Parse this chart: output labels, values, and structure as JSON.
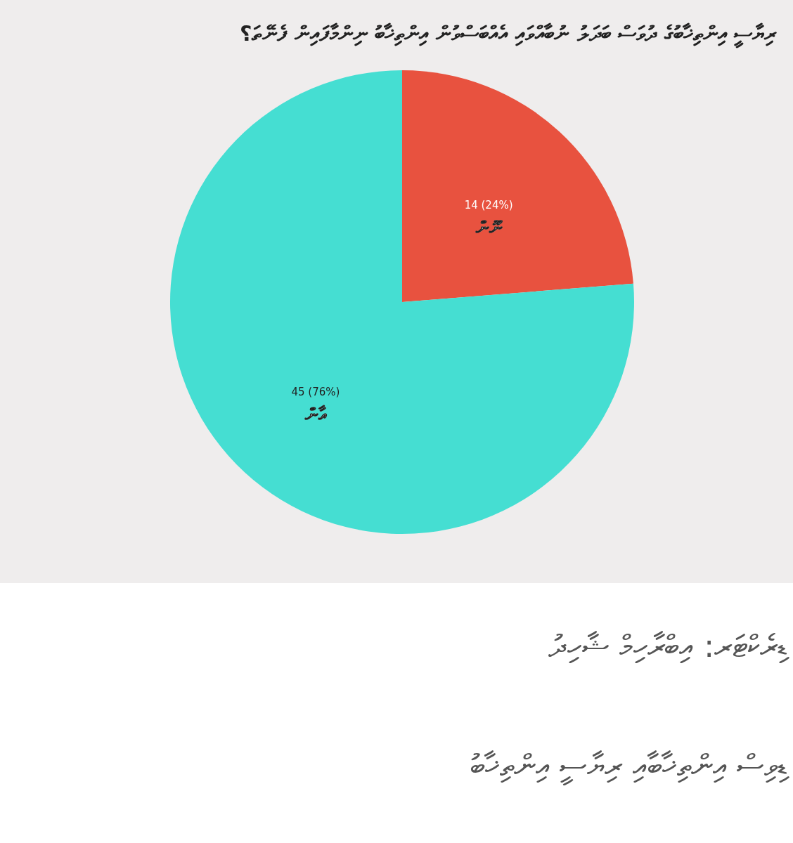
{
  "chart_data": {
    "type": "pie",
    "title": "ރިޔާސީ އިންތިޚާބުގެ ދުވަސް ބަދަލު ނުބާއްވައި އެއްބަސްވުން އިންތިޚާބު ނިންމާފައިން ފެނޭތަ؟",
    "categories": [
      "ނޫން",
      "އާން"
    ],
    "values": [
      14,
      45
    ],
    "value_labels": [
      "14 (24%)",
      "45 (76%)"
    ],
    "colors": [
      "#e8523f",
      "#45ded2"
    ],
    "annotations": [
      "ޑިރެކްޓަރ: އިބްރާހިމް ޝާހިދު",
      "ޑިވިސް އިންތިޚާބާއި ރިޔާސީ އިންތިޚާބު"
    ]
  }
}
